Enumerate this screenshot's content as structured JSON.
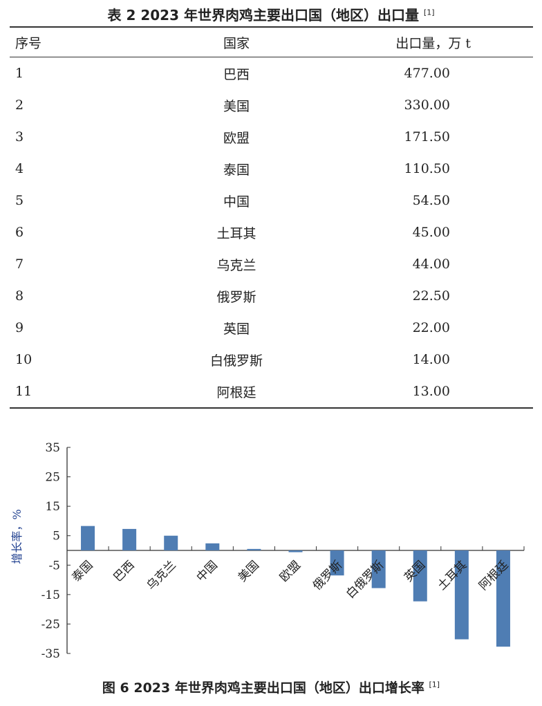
{
  "table": {
    "title": "表 2  2023 年世界肉鸡主要出口国（地区）出口量",
    "title_ref": "[1]",
    "headers": [
      "序号",
      "国家",
      "出口量，万 t"
    ],
    "rows": [
      [
        "1",
        "巴西",
        "477.00"
      ],
      [
        "2",
        "美国",
        "330.00"
      ],
      [
        "3",
        "欧盟",
        "171.50"
      ],
      [
        "4",
        "泰国",
        "110.50"
      ],
      [
        "5",
        "中国",
        "54.50"
      ],
      [
        "6",
        "土耳其",
        "45.00"
      ],
      [
        "7",
        "乌克兰",
        "44.00"
      ],
      [
        "8",
        "俄罗斯",
        "22.50"
      ],
      [
        "9",
        "英国",
        "22.00"
      ],
      [
        "10",
        "白俄罗斯",
        "14.00"
      ],
      [
        "11",
        "阿根廷",
        "13.00"
      ]
    ]
  },
  "chart_data": {
    "type": "bar",
    "title": "图 6  2023 年世界肉鸡主要出口国（地区）出口增长率",
    "title_ref": "[1]",
    "ylabel": "增长率，%",
    "xlabel": "",
    "categories": [
      "泰国",
      "巴西",
      "乌克兰",
      "中国",
      "美国",
      "欧盟",
      "俄罗斯",
      "白俄罗斯",
      "英国",
      "土耳其",
      "阿根廷"
    ],
    "values": [
      8.3,
      7.3,
      5.0,
      2.4,
      0.5,
      -0.6,
      -8.5,
      -12.8,
      -17.3,
      -30.2,
      -32.7
    ],
    "ylim": [
      -35,
      35
    ],
    "yticks": [
      "35",
      "25",
      "15",
      "5",
      "-5",
      "-15",
      "-25",
      "-35"
    ],
    "grid": false,
    "bar_color": "#4f7db3"
  }
}
